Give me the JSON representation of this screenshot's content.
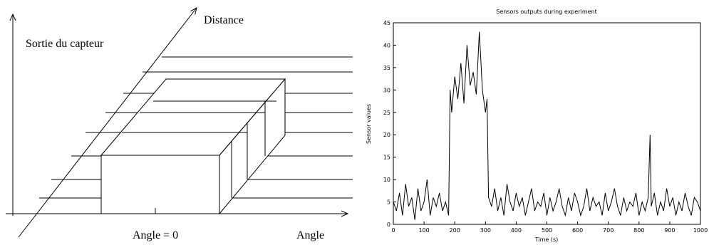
{
  "diagram": {
    "y_axis_label": "Sortie du capteur",
    "depth_axis_label": "Distance",
    "x_axis_label": "Angle",
    "center_label": "Angle = 0"
  },
  "chart_data": {
    "type": "line",
    "title": "Sensors outputs during experiment",
    "xlabel": "Time (s)",
    "ylabel": "Sensor values",
    "xlim": [
      0,
      1000
    ],
    "ylim": [
      0,
      45
    ],
    "xticks": [
      0,
      100,
      200,
      300,
      400,
      500,
      600,
      700,
      800,
      900,
      1000
    ],
    "yticks": [
      0,
      5,
      10,
      15,
      20,
      25,
      30,
      35,
      40,
      45
    ],
    "grid": false,
    "series": [
      {
        "x": [
          0,
          10,
          20,
          30,
          40,
          50,
          60,
          70,
          80,
          90,
          100,
          110,
          120,
          130,
          140,
          150,
          160,
          170,
          180,
          185,
          190,
          200,
          210,
          220,
          230,
          240,
          250,
          260,
          270,
          280,
          290,
          300,
          305,
          310,
          320,
          330,
          340,
          350,
          360,
          370,
          380,
          390,
          400,
          410,
          420,
          430,
          440,
          450,
          460,
          470,
          480,
          490,
          500,
          510,
          520,
          530,
          540,
          550,
          560,
          570,
          580,
          590,
          600,
          610,
          620,
          630,
          640,
          650,
          660,
          670,
          680,
          690,
          700,
          710,
          720,
          730,
          740,
          750,
          760,
          770,
          780,
          790,
          800,
          810,
          820,
          830,
          836,
          840,
          850,
          860,
          870,
          880,
          890,
          900,
          910,
          920,
          930,
          940,
          950,
          960,
          970,
          980,
          990,
          1000
        ],
        "values": [
          5,
          3,
          7,
          2,
          9,
          4,
          6,
          1,
          8,
          3,
          5,
          10,
          2,
          6,
          4,
          7,
          3,
          5,
          2,
          30,
          25,
          33,
          28,
          36,
          27,
          40,
          31,
          34,
          29,
          43,
          30,
          25,
          28,
          6,
          4,
          8,
          3,
          6,
          2,
          9,
          5,
          3,
          7,
          4,
          6,
          2,
          5,
          8,
          3,
          5,
          4,
          7,
          2,
          6,
          3,
          5,
          8,
          4,
          2,
          6,
          3,
          7,
          5,
          2,
          4,
          8,
          3,
          6,
          4,
          5,
          2,
          7,
          3,
          5,
          8,
          4,
          2,
          6,
          3,
          5,
          4,
          7,
          2,
          5,
          3,
          6,
          20,
          4,
          7,
          2,
          5,
          3,
          8,
          4,
          6,
          2,
          5,
          3,
          7,
          4,
          2,
          6,
          5,
          3
        ]
      }
    ]
  }
}
